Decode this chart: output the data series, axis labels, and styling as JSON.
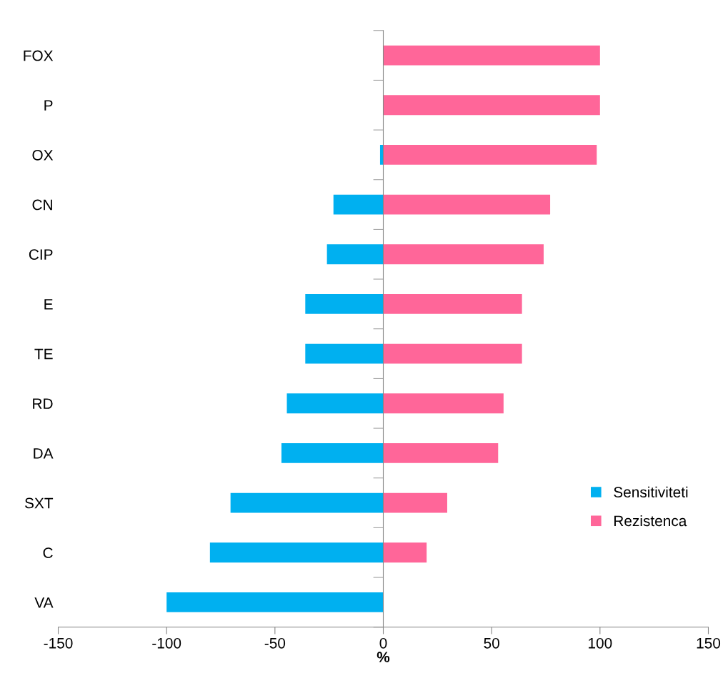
{
  "chart_data": {
    "type": "bar",
    "orientation": "horizontal",
    "stacked": true,
    "xlabel": "%",
    "categories": [
      "FOX",
      "P",
      "OX",
      "CN",
      "CIP",
      "E",
      "TE",
      "RD",
      "DA",
      "SXT",
      "C",
      "VA"
    ],
    "series": [
      {
        "name": "Sensitiviteti",
        "color": "#00b0f0",
        "values": [
          0,
          0,
          -1.5,
          -23,
          -26,
          -36,
          -36,
          -44.5,
          -47,
          -70.5,
          -80,
          -100
        ]
      },
      {
        "name": "Rezistenca",
        "color": "#ff6699",
        "values": [
          100,
          100,
          98.5,
          77,
          74,
          64,
          64,
          55.5,
          53,
          29.5,
          20,
          0
        ]
      }
    ],
    "xlim": [
      -150,
      150
    ],
    "xticks": [
      -150,
      -100,
      -50,
      0,
      50,
      100,
      150
    ],
    "legend": "right"
  }
}
